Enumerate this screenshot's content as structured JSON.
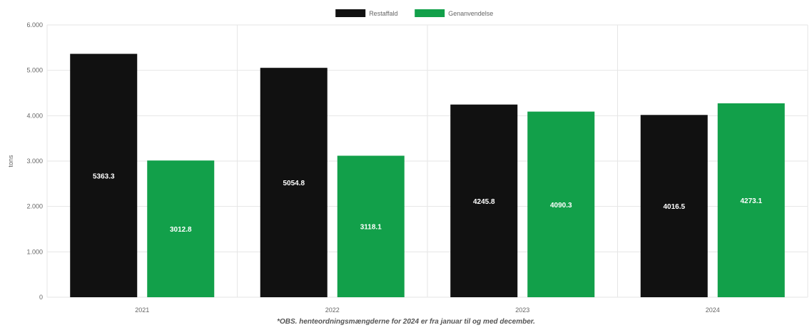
{
  "chart_data": {
    "type": "bar",
    "categories": [
      "2021",
      "2022",
      "2023",
      "2024"
    ],
    "series": [
      {
        "name": "Restaffald",
        "values": [
          5363.3,
          5054.8,
          4245.8,
          4016.5
        ],
        "color": "#111111"
      },
      {
        "name": "Genanvendelse",
        "values": [
          3012.8,
          3118.1,
          4090.3,
          4273.1
        ],
        "color": "#12a04a"
      }
    ],
    "ylabel": "tons",
    "ylim": [
      0,
      6000
    ],
    "yticks": [
      0,
      1000,
      2000,
      3000,
      4000,
      5000,
      6000
    ],
    "ytick_labels": [
      "0",
      "1.000",
      "2.000",
      "3.000",
      "4.000",
      "5.000",
      "6.000"
    ],
    "value_labels": [
      [
        "5363.3",
        "5054.8",
        "4245.8",
        "4016.5"
      ],
      [
        "3012.8",
        "3118.1",
        "4090.3",
        "4273.1"
      ]
    ],
    "grid": true,
    "legend": "top-center"
  },
  "footnote": "*OBS. henteordningsmængderne for 2024 er fra januar til og med december."
}
